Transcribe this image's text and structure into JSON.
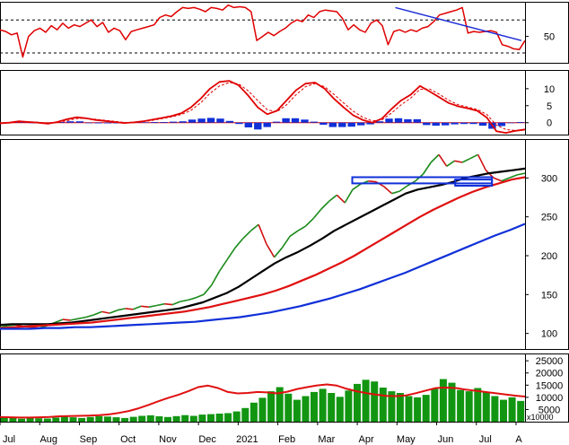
{
  "colors": {
    "background": "#ffffff",
    "panel_border": "#000000",
    "rsi_line": "#e00000",
    "trendline": "#1c2bd6",
    "macd_line": "#e00000",
    "signal_line": "#e00000",
    "histogram": "#1030d8",
    "candle_up": "#1a8a1a",
    "candle_down": "#d01010",
    "ma_short": "#000000",
    "ma_mid": "#e01010",
    "ma_long": "#1030d8",
    "support_box": "#1030d8",
    "volume_bar": "#129612",
    "volume_ma": "#e01010"
  },
  "chart_data": [
    {
      "type": "line",
      "panel": "rsi",
      "x_labels": [
        "Jul",
        "Aug",
        "Sep",
        "Oct",
        "Nov",
        "Dec",
        "2021",
        "Feb",
        "Mar",
        "Apr",
        "May",
        "Jun",
        "Jul",
        "A"
      ],
      "y_ticks": [
        50
      ],
      "guide_levels": [
        30,
        70
      ],
      "ylim": [
        18,
        92
      ],
      "series": [
        {
          "values": [
            58,
            56,
            52,
            54,
            25,
            50,
            57,
            60,
            55,
            63,
            58,
            66,
            60,
            64,
            62,
            66,
            70,
            62,
            67,
            55,
            60,
            57,
            46,
            56,
            58,
            60,
            62,
            64,
            73,
            76,
            74,
            80,
            85,
            84,
            85,
            83,
            80,
            85,
            84,
            82,
            88,
            85,
            86,
            85,
            80,
            45,
            50,
            55,
            51,
            56,
            60,
            66,
            70,
            68,
            76,
            73,
            80,
            82,
            81,
            80,
            72,
            58,
            64,
            58,
            55,
            66,
            70,
            63,
            40,
            56,
            58,
            55,
            58,
            56,
            60,
            62,
            68,
            76,
            78,
            80,
            82,
            85,
            54,
            56,
            55,
            56,
            57,
            55,
            40,
            38,
            35,
            34,
            45
          ]
        }
      ],
      "trendline": {
        "from": [
          0.753,
          85
        ],
        "to": [
          0.993,
          45
        ]
      }
    },
    {
      "type": "line",
      "panel": "macd",
      "y_ticks": [
        10,
        5,
        0
      ],
      "ylim": [
        -3.5,
        15.5
      ],
      "series": [
        {
          "name": "macd",
          "values": [
            -0.2,
            0.0,
            0.4,
            0.2,
            0.0,
            -0.3,
            0.2,
            1.0,
            1.6,
            1.3,
            0.8,
            0.5,
            0.2,
            -0.1,
            0.1,
            0.4,
            0.9,
            1.4,
            2.0,
            2.8,
            4.5,
            7.0,
            10.0,
            12.0,
            12.3,
            11.0,
            8.0,
            4.5,
            2.5,
            3.5,
            6.5,
            9.5,
            11.5,
            11.8,
            10.0,
            7.0,
            4.5,
            2.2,
            0.8,
            0.0,
            1.2,
            4.0,
            6.5,
            8.2,
            10.8,
            9.2,
            7.5,
            5.8,
            4.8,
            4.2,
            3.5,
            1.5,
            -2.5,
            -3.0,
            -2.4,
            -2.0
          ]
        },
        {
          "name": "signal",
          "values": [
            -0.1,
            -0.1,
            0.2,
            0.3,
            0.1,
            -0.1,
            0.0,
            0.6,
            1.2,
            1.3,
            1.0,
            0.7,
            0.4,
            0.1,
            0.0,
            0.3,
            0.7,
            1.2,
            1.7,
            2.4,
            3.6,
            5.8,
            8.6,
            10.8,
            11.8,
            11.4,
            9.4,
            6.5,
            3.8,
            3.2,
            5.2,
            8.2,
            10.6,
            11.5,
            10.6,
            8.3,
            5.8,
            3.4,
            1.6,
            0.5,
            0.8,
            2.8,
            5.2,
            7.2,
            9.8,
            9.9,
            8.4,
            6.6,
            5.3,
            4.6,
            3.9,
            2.4,
            -0.7,
            -2.0,
            -2.3,
            -2.2
          ]
        }
      ],
      "histogram": [
        -0.1,
        0.1,
        0.2,
        -0.1,
        -0.1,
        -0.2,
        0.2,
        0.4,
        0.4,
        0.0,
        -0.2,
        -0.2,
        -0.2,
        -0.2,
        0.1,
        0.1,
        0.2,
        0.2,
        0.3,
        0.4,
        0.9,
        1.2,
        1.4,
        1.2,
        0.5,
        -0.4,
        -1.4,
        -2.0,
        -1.3,
        0.3,
        1.3,
        1.3,
        0.9,
        0.3,
        -0.6,
        -1.3,
        -1.3,
        -1.2,
        -0.8,
        -0.5,
        0.4,
        1.2,
        1.3,
        1.0,
        1.0,
        -0.7,
        -0.9,
        -0.8,
        -0.5,
        -0.4,
        -0.4,
        -0.9,
        -1.8,
        -1.0,
        -0.1,
        0.2
      ]
    },
    {
      "type": "line",
      "panel": "price",
      "y_ticks": [
        300,
        250,
        200,
        150,
        100
      ],
      "ylim": [
        80,
        350
      ],
      "series": [
        {
          "name": "close",
          "values": [
            108,
            110,
            111,
            109,
            108,
            107,
            110,
            114,
            118,
            117,
            119,
            121,
            124,
            128,
            126,
            130,
            132,
            131,
            135,
            134,
            136,
            138,
            137,
            141,
            143,
            146,
            150,
            162,
            180,
            195,
            210,
            222,
            232,
            240,
            215,
            198,
            210,
            225,
            232,
            238,
            248,
            260,
            270,
            278,
            268,
            285,
            292,
            296,
            295,
            289,
            280,
            283,
            290,
            296,
            305,
            320,
            330,
            315,
            322,
            320,
            325,
            330,
            310,
            300,
            296,
            300,
            304,
            306
          ]
        },
        {
          "name": "ma_short",
          "values": [
            111,
            112,
            112,
            112,
            112,
            113,
            114,
            116,
            118,
            120,
            122,
            124,
            126,
            128,
            130,
            132,
            136,
            140,
            146,
            152,
            160,
            170,
            180,
            190,
            198,
            205,
            213,
            222,
            232,
            240,
            248,
            256,
            264,
            272,
            280,
            285,
            288,
            291,
            295,
            300,
            303,
            306,
            308,
            310,
            312
          ]
        },
        {
          "name": "ma_mid",
          "values": [
            107,
            108,
            109,
            110,
            111,
            112,
            113,
            114,
            116,
            118,
            120,
            122,
            124,
            126,
            128,
            131,
            134,
            138,
            142,
            146,
            150,
            155,
            161,
            168,
            175,
            183,
            191,
            200,
            210,
            220,
            230,
            240,
            250,
            259,
            267,
            275,
            282,
            288,
            293,
            298,
            301
          ]
        },
        {
          "name": "ma_long",
          "values": [
            106,
            106,
            106,
            107,
            107,
            108,
            108,
            109,
            110,
            111,
            112,
            113,
            114,
            115,
            117,
            119,
            121,
            124,
            127,
            131,
            135,
            140,
            145,
            151,
            157,
            164,
            171,
            178,
            186,
            194,
            202,
            210,
            218,
            226,
            233,
            241
          ]
        }
      ],
      "support_zone": [
        {
          "x_start": 0.671,
          "x_end": 0.937,
          "y_low": 293,
          "y_high": 301
        },
        {
          "x_start": 0.867,
          "x_end": 0.937,
          "y_low": 290,
          "y_high": 298
        }
      ]
    },
    {
      "type": "bar",
      "panel": "volume",
      "y_ticks": [
        25000,
        20000,
        15000,
        10000,
        5000
      ],
      "unit_label": "x10000",
      "ylim": [
        0,
        28000
      ],
      "values": [
        1800,
        1500,
        1200,
        1600,
        1400,
        1300,
        1700,
        2200,
        1800,
        1500,
        1900,
        2300,
        2100,
        1800,
        1500,
        2000,
        2400,
        2600,
        2200,
        1900,
        2300,
        2700,
        2400,
        2900,
        3100,
        3300,
        3500,
        4200,
        5600,
        7800,
        9800,
        12500,
        14200,
        11500,
        9000,
        10500,
        12200,
        13500,
        11800,
        10200,
        12800,
        15500,
        17200,
        16500,
        14000,
        12500,
        11800,
        10500,
        10000,
        11000,
        13500,
        17500,
        16000,
        13000,
        12500,
        13800,
        12000,
        10500,
        9000,
        10000,
        8500
      ],
      "ma": [
        1900,
        1800,
        1700,
        1700,
        1800,
        1900,
        2200,
        2300,
        2400,
        2500,
        2700,
        3000,
        3600,
        4400,
        5500,
        6900,
        8400,
        9800,
        11000,
        12500,
        14200,
        14800,
        13800,
        12200,
        11600,
        11800,
        12200,
        12000,
        11600,
        12300,
        13400,
        14200,
        14900,
        15300,
        14800,
        13500,
        12500,
        11700,
        11100,
        10600,
        10500,
        10800,
        11700,
        12800,
        13800,
        14000,
        13800,
        13200,
        12700,
        12200,
        11700,
        11200,
        10700,
        10300
      ]
    }
  ]
}
